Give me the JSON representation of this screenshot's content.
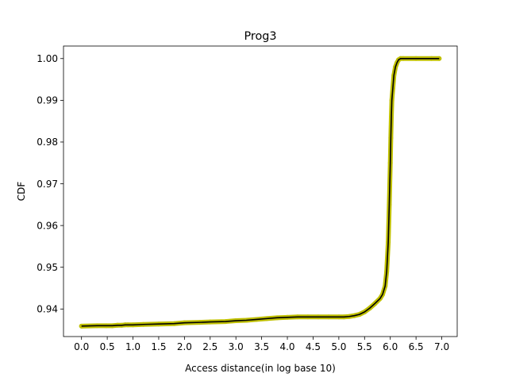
{
  "chart_data": {
    "type": "line",
    "title": "Prog3",
    "xlabel": "Access distance(in log base 10)",
    "ylabel": "CDF",
    "xlim": [
      -0.35,
      7.3
    ],
    "ylim": [
      0.9334,
      1.003
    ],
    "grid": false,
    "xticks": [
      0.0,
      0.5,
      1.0,
      1.5,
      2.0,
      2.5,
      3.0,
      3.5,
      4.0,
      4.5,
      5.0,
      5.5,
      6.0,
      6.5,
      7.0
    ],
    "xtick_labels": [
      "0.0",
      "0.5",
      "1.0",
      "1.5",
      "2.0",
      "2.5",
      "3.0",
      "3.5",
      "4.0",
      "4.5",
      "5.0",
      "5.5",
      "6.0",
      "6.5",
      "7.0"
    ],
    "yticks": [
      0.94,
      0.95,
      0.96,
      0.97,
      0.98,
      0.99,
      1.0
    ],
    "ytick_labels": [
      "0.94",
      "0.95",
      "0.96",
      "0.97",
      "0.98",
      "0.99",
      "1.00"
    ],
    "series": [
      {
        "style": "yellow-markers-under-black-line",
        "marker_color": "#bfbf00",
        "line_color": "#000000",
        "x": [
          0.0,
          0.3,
          0.48,
          0.6,
          0.7,
          0.78,
          0.85,
          0.9,
          1.0,
          1.2,
          1.5,
          1.8,
          2.0,
          2.3,
          2.5,
          2.8,
          3.0,
          3.2,
          3.4,
          3.6,
          3.8,
          4.0,
          4.2,
          4.4,
          4.6,
          4.8,
          5.0,
          5.1,
          5.2,
          5.3,
          5.4,
          5.5,
          5.6,
          5.7,
          5.8,
          5.85,
          5.9,
          5.93,
          5.96,
          5.98,
          6.0,
          6.01,
          6.02,
          6.03,
          6.05,
          6.07,
          6.1,
          6.13,
          6.16,
          6.2,
          6.25,
          6.5,
          6.8,
          6.95
        ],
        "y": [
          0.9359,
          0.936,
          0.936,
          0.936,
          0.9361,
          0.9361,
          0.9362,
          0.9362,
          0.9362,
          0.9363,
          0.9364,
          0.9365,
          0.9367,
          0.9368,
          0.9369,
          0.937,
          0.9372,
          0.9373,
          0.9375,
          0.9377,
          0.9379,
          0.938,
          0.9381,
          0.9381,
          0.9381,
          0.9381,
          0.9381,
          0.9381,
          0.9382,
          0.9384,
          0.9387,
          0.9393,
          0.9402,
          0.9413,
          0.9425,
          0.9435,
          0.9455,
          0.949,
          0.956,
          0.965,
          0.975,
          0.981,
          0.986,
          0.99,
          0.993,
          0.996,
          0.998,
          0.999,
          0.9997,
          1.0,
          1.0,
          1.0,
          1.0,
          1.0
        ]
      }
    ]
  }
}
